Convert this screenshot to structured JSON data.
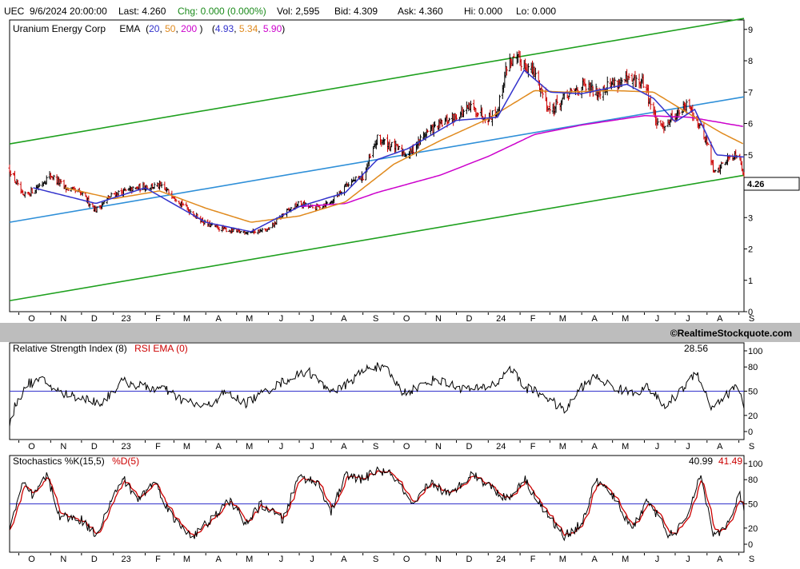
{
  "quote_bar": {
    "symbol": "UEC",
    "datetime": "9/6/2024 20:00:00",
    "last": "Last: 4.260",
    "chg": "Chg: 0.000 (0.000%)",
    "vol": "Vol: 2,595",
    "bid": "Bid: 4.309",
    "ask": "Ask: 4.360",
    "hi": "Hi: 0.000",
    "lo": "Lo: 0.000"
  },
  "colors": {
    "background": "#ffffff",
    "band": "#bdbdbd",
    "ema20": "#3333cc",
    "ema50": "#e08a1e",
    "ema200": "#cc00cc",
    "channel": "#1ea01e",
    "midline": "#2e8fd8",
    "candle_up": "#000000",
    "candle_down": "#cc0000",
    "rsi": "#000000",
    "rsi_ema": "#cc0000",
    "k": "#000000",
    "d": "#cc0000",
    "refline": "#3333cc"
  },
  "price_panel": {
    "title": "Uranium Energy Corp",
    "ema_label": "EMA",
    "ema_periods": [
      "20",
      "50",
      "200"
    ],
    "ema_values": [
      "4.93",
      "5.34",
      "5.90"
    ],
    "last_price_label": "4.26",
    "watermark": "©RealtimeStockquote.com"
  },
  "rsi_panel": {
    "title": "Relative Strength Index (8)",
    "ema_label": "RSI EMA (0)",
    "value": "28.56"
  },
  "stoch_panel": {
    "title": "Stochastics %K(15,5)",
    "d_label": "%D(5)",
    "k_value": "40.99",
    "d_value": "41.49"
  },
  "x_axis_months": [
    "O",
    "N",
    "D",
    "23",
    "F",
    "M",
    "A",
    "M",
    "J",
    "J",
    "A",
    "S",
    "O",
    "N",
    "D",
    "24",
    "F",
    "M",
    "A",
    "M",
    "J",
    "J",
    "A",
    "S"
  ],
  "chart_data": [
    {
      "type": "candlestick",
      "x_axis": "date (months Oct 2022 – Sep 2024)",
      "y_ticks": [
        0,
        1,
        2,
        3,
        4,
        5,
        6,
        7,
        8,
        9
      ],
      "ylim": [
        0,
        9.3
      ],
      "anchor_closes": [
        [
          "2022-09-22",
          4.55
        ],
        [
          "2022-10-05",
          3.65
        ],
        [
          "2022-10-20",
          4.0
        ],
        [
          "2022-11-01",
          4.35
        ],
        [
          "2022-11-15",
          3.95
        ],
        [
          "2022-12-01",
          3.75
        ],
        [
          "2022-12-15",
          3.25
        ],
        [
          "2023-01-01",
          3.75
        ],
        [
          "2023-01-15",
          3.85
        ],
        [
          "2023-02-01",
          4.0
        ],
        [
          "2023-02-15",
          4.0
        ],
        [
          "2023-03-01",
          3.7
        ],
        [
          "2023-03-15",
          3.25
        ],
        [
          "2023-04-01",
          2.8
        ],
        [
          "2023-04-15",
          2.65
        ],
        [
          "2023-05-01",
          2.55
        ],
        [
          "2023-05-15",
          2.55
        ],
        [
          "2023-06-01",
          2.6
        ],
        [
          "2023-06-15",
          3.1
        ],
        [
          "2023-07-01",
          3.45
        ],
        [
          "2023-07-15",
          3.3
        ],
        [
          "2023-08-01",
          3.5
        ],
        [
          "2023-08-15",
          4.05
        ],
        [
          "2023-09-01",
          4.3
        ],
        [
          "2023-09-15",
          5.5
        ],
        [
          "2023-10-01",
          5.25
        ],
        [
          "2023-10-15",
          5.0
        ],
        [
          "2023-11-01",
          5.7
        ],
        [
          "2023-11-15",
          5.95
        ],
        [
          "2023-12-01",
          6.25
        ],
        [
          "2023-12-15",
          6.5
        ],
        [
          "2024-01-01",
          6.2
        ],
        [
          "2024-01-10",
          6.4
        ],
        [
          "2024-01-20",
          8.0
        ],
        [
          "2024-02-01",
          8.0
        ],
        [
          "2024-02-15",
          7.6
        ],
        [
          "2024-03-01",
          6.4
        ],
        [
          "2024-03-15",
          6.8
        ],
        [
          "2024-04-01",
          7.2
        ],
        [
          "2024-04-15",
          7.0
        ],
        [
          "2024-05-01",
          7.3
        ],
        [
          "2024-05-15",
          7.35
        ],
        [
          "2024-06-01",
          7.3
        ],
        [
          "2024-06-15",
          5.8
        ],
        [
          "2024-07-01",
          6.3
        ],
        [
          "2024-07-15",
          6.6
        ],
        [
          "2024-08-01",
          5.4
        ],
        [
          "2024-08-08",
          4.4
        ],
        [
          "2024-08-20",
          4.85
        ],
        [
          "2024-09-01",
          5.1
        ],
        [
          "2024-09-06",
          4.26
        ]
      ],
      "ema": {
        "ema20": [
          [
            "2022-10-15",
            3.95
          ],
          [
            "2022-12-15",
            3.45
          ],
          [
            "2023-02-01",
            3.95
          ],
          [
            "2023-04-01",
            2.85
          ],
          [
            "2023-05-15",
            2.55
          ],
          [
            "2023-07-01",
            3.35
          ],
          [
            "2023-08-15",
            3.8
          ],
          [
            "2023-09-15",
            4.85
          ],
          [
            "2023-10-15",
            5.2
          ],
          [
            "2023-12-01",
            6.1
          ],
          [
            "2024-01-10",
            6.2
          ],
          [
            "2024-02-05",
            7.7
          ],
          [
            "2024-03-01",
            7.0
          ],
          [
            "2024-04-01",
            6.95
          ],
          [
            "2024-05-15",
            7.25
          ],
          [
            "2024-06-10",
            6.8
          ],
          [
            "2024-07-01",
            6.05
          ],
          [
            "2024-07-20",
            6.45
          ],
          [
            "2024-08-10",
            5.0
          ],
          [
            "2024-09-06",
            4.93
          ]
        ],
        "ema50": [
          [
            "2022-11-15",
            3.95
          ],
          [
            "2023-01-01",
            3.6
          ],
          [
            "2023-02-15",
            3.85
          ],
          [
            "2023-04-01",
            3.3
          ],
          [
            "2023-05-15",
            2.85
          ],
          [
            "2023-07-01",
            3.05
          ],
          [
            "2023-08-15",
            3.5
          ],
          [
            "2023-10-01",
            4.7
          ],
          [
            "2023-11-15",
            5.45
          ],
          [
            "2024-01-01",
            6.15
          ],
          [
            "2024-02-15",
            7.05
          ],
          [
            "2024-03-15",
            7.0
          ],
          [
            "2024-05-01",
            7.05
          ],
          [
            "2024-06-10",
            7.0
          ],
          [
            "2024-07-15",
            6.3
          ],
          [
            "2024-08-15",
            5.7
          ],
          [
            "2024-09-06",
            5.34
          ]
        ],
        "ema200": [
          [
            "2023-07-01",
            3.35
          ],
          [
            "2023-08-15",
            3.45
          ],
          [
            "2023-09-15",
            3.8
          ],
          [
            "2023-11-15",
            4.35
          ],
          [
            "2024-01-01",
            4.95
          ],
          [
            "2024-02-15",
            5.65
          ],
          [
            "2024-04-01",
            5.95
          ],
          [
            "2024-06-01",
            6.25
          ],
          [
            "2024-07-15",
            6.2
          ],
          [
            "2024-09-06",
            5.9
          ]
        ]
      },
      "channel_upper": [
        [
          "2022-09-22",
          5.35
        ],
        [
          "2024-09-06",
          9.35
        ]
      ],
      "channel_lower": [
        [
          "2022-09-22",
          0.35
        ],
        [
          "2024-09-06",
          4.35
        ]
      ],
      "midline": [
        [
          "2022-09-22",
          2.85
        ],
        [
          "2024-09-06",
          6.85
        ]
      ]
    },
    {
      "type": "line",
      "name": "Relative Strength Index (8)",
      "y_ticks": [
        0,
        20,
        50,
        80,
        100
      ],
      "ylim": [
        0,
        100
      ],
      "ref_line": 50,
      "anchors": [
        [
          "2022-09-22",
          5
        ],
        [
          "2022-09-28",
          35
        ],
        [
          "2022-10-10",
          60
        ],
        [
          "2022-10-25",
          63
        ],
        [
          "2022-11-10",
          48
        ],
        [
          "2022-12-01",
          42
        ],
        [
          "2022-12-20",
          35
        ],
        [
          "2023-01-10",
          62
        ],
        [
          "2023-02-01",
          55
        ],
        [
          "2023-02-20",
          52
        ],
        [
          "2023-03-10",
          38
        ],
        [
          "2023-04-01",
          30
        ],
        [
          "2023-04-20",
          48
        ],
        [
          "2023-05-10",
          35
        ],
        [
          "2023-06-01",
          52
        ],
        [
          "2023-06-20",
          65
        ],
        [
          "2023-07-10",
          75
        ],
        [
          "2023-07-25",
          55
        ],
        [
          "2023-08-10",
          52
        ],
        [
          "2023-08-25",
          68
        ],
        [
          "2023-09-10",
          82
        ],
        [
          "2023-09-25",
          75
        ],
        [
          "2023-10-10",
          48
        ],
        [
          "2023-10-25",
          55
        ],
        [
          "2023-11-10",
          65
        ],
        [
          "2023-12-01",
          55
        ],
        [
          "2023-12-20",
          52
        ],
        [
          "2024-01-10",
          60
        ],
        [
          "2024-01-22",
          80
        ],
        [
          "2024-02-05",
          55
        ],
        [
          "2024-02-25",
          45
        ],
        [
          "2024-03-15",
          25
        ],
        [
          "2024-04-01",
          55
        ],
        [
          "2024-04-15",
          68
        ],
        [
          "2024-05-01",
          55
        ],
        [
          "2024-05-20",
          48
        ],
        [
          "2024-06-05",
          55
        ],
        [
          "2024-06-20",
          30
        ],
        [
          "2024-07-05",
          48
        ],
        [
          "2024-07-22",
          75
        ],
        [
          "2024-08-05",
          30
        ],
        [
          "2024-08-20",
          45
        ],
        [
          "2024-09-01",
          58
        ],
        [
          "2024-09-06",
          28.56
        ]
      ]
    },
    {
      "type": "line",
      "name": "Stochastics %K(15,5)",
      "y_ticks": [
        0,
        20,
        50,
        80,
        100
      ],
      "ylim": [
        0,
        100
      ],
      "ref_line": 50,
      "anchors": [
        [
          "2022-09-22",
          20
        ],
        [
          "2022-10-05",
          75
        ],
        [
          "2022-10-15",
          58
        ],
        [
          "2022-10-28",
          85
        ],
        [
          "2022-11-10",
          35
        ],
        [
          "2022-12-01",
          30
        ],
        [
          "2022-12-15",
          12
        ],
        [
          "2023-01-10",
          82
        ],
        [
          "2023-01-25",
          55
        ],
        [
          "2023-02-10",
          78
        ],
        [
          "2023-03-01",
          30
        ],
        [
          "2023-03-20",
          10
        ],
        [
          "2023-04-10",
          35
        ],
        [
          "2023-04-25",
          55
        ],
        [
          "2023-05-10",
          25
        ],
        [
          "2023-05-25",
          50
        ],
        [
          "2023-06-15",
          30
        ],
        [
          "2023-07-01",
          85
        ],
        [
          "2023-07-20",
          75
        ],
        [
          "2023-08-01",
          40
        ],
        [
          "2023-08-15",
          85
        ],
        [
          "2023-09-01",
          80
        ],
        [
          "2023-09-15",
          92
        ],
        [
          "2023-10-01",
          85
        ],
        [
          "2023-10-20",
          45
        ],
        [
          "2023-11-05",
          78
        ],
        [
          "2023-11-25",
          60
        ],
        [
          "2023-12-15",
          88
        ],
        [
          "2024-01-05",
          70
        ],
        [
          "2024-01-20",
          55
        ],
        [
          "2024-02-05",
          82
        ],
        [
          "2024-02-25",
          40
        ],
        [
          "2024-03-15",
          10
        ],
        [
          "2024-04-01",
          25
        ],
        [
          "2024-04-15",
          80
        ],
        [
          "2024-05-01",
          60
        ],
        [
          "2024-05-20",
          20
        ],
        [
          "2024-06-05",
          55
        ],
        [
          "2024-06-25",
          10
        ],
        [
          "2024-07-10",
          25
        ],
        [
          "2024-07-25",
          85
        ],
        [
          "2024-08-08",
          10
        ],
        [
          "2024-08-25",
          30
        ],
        [
          "2024-09-01",
          65
        ],
        [
          "2024-09-06",
          40.99
        ]
      ]
    }
  ]
}
